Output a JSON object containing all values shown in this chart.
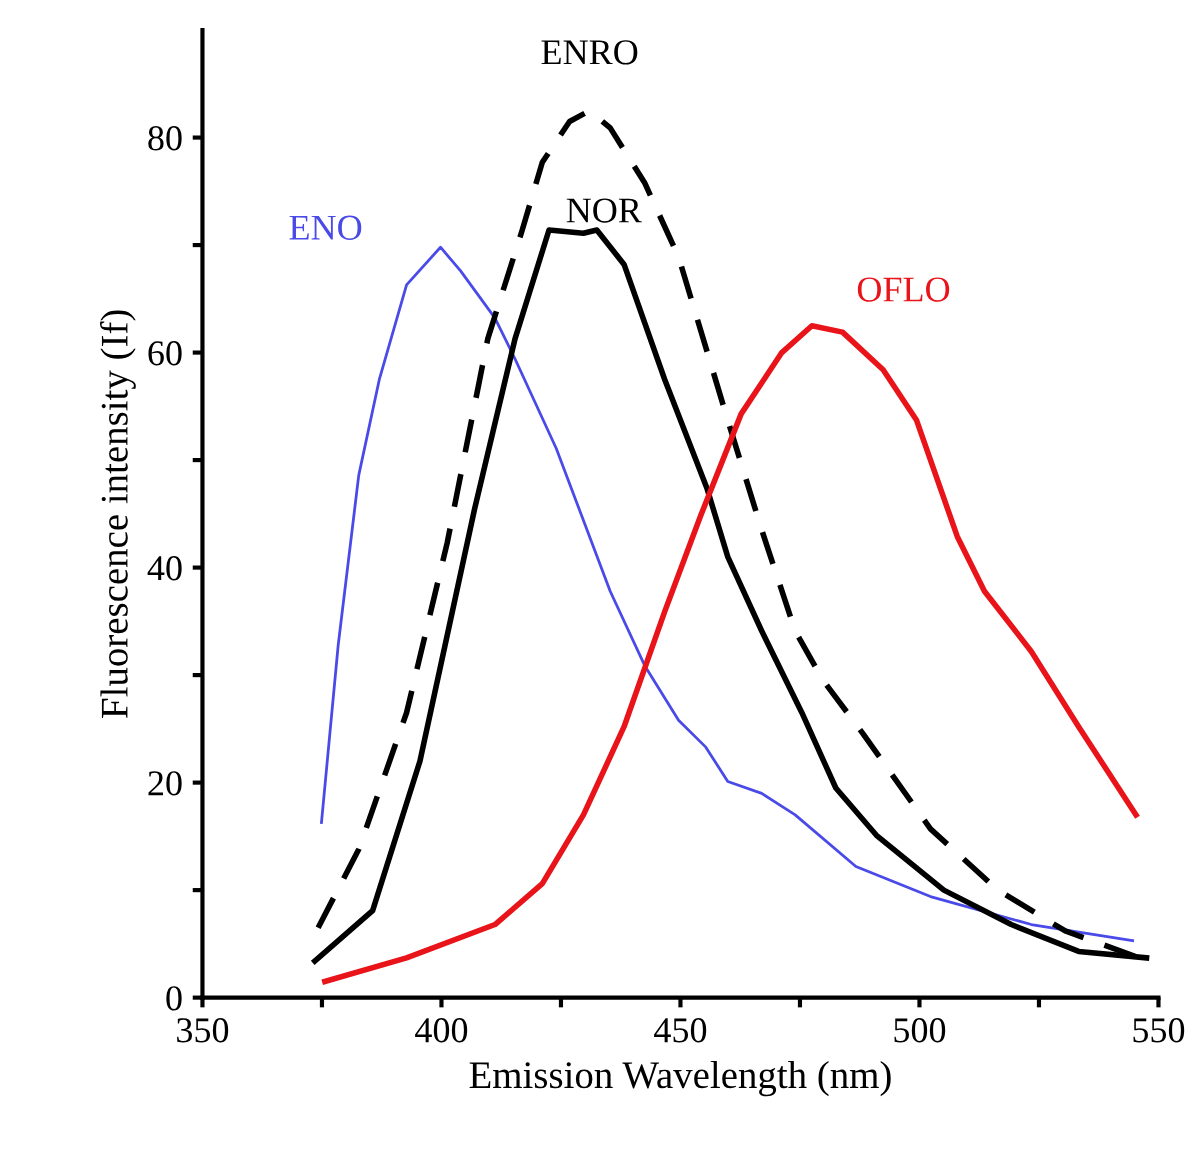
{
  "chart_data": {
    "type": "line",
    "xlabel": "Emission Wavelength (nm)",
    "ylabel": "Fluorescence intensity (If)",
    "xlim": [
      350,
      550
    ],
    "ylim": [
      0,
      90
    ],
    "xticks": [
      350,
      {
        "value": 375,
        "label": null
      },
      400,
      {
        "value": 425,
        "label": null
      },
      450,
      {
        "value": 475,
        "label": null
      },
      500,
      {
        "value": 525,
        "label": null
      },
      550
    ],
    "yticks": [
      0,
      {
        "value": 10,
        "label": null
      },
      20,
      {
        "value": 30,
        "label": null
      },
      40,
      {
        "value": 50,
        "label": null
      },
      60,
      {
        "value": 70,
        "label": null
      },
      80
    ],
    "grid": false,
    "legend": false,
    "marker": "none",
    "series": [
      {
        "name": "ENO",
        "color": "#4a4ae8",
        "line_style": "solid",
        "x": [
          374.9,
          378.4,
          382.7,
          387,
          392.7,
          399.8,
          404,
          411.2,
          415.4,
          424,
          435.3,
          442.5,
          449.6,
          455.3,
          459.9,
          467,
          474,
          486.7,
          502.3,
          523.4,
          544.6
        ],
        "values": [
          16.3,
          32.8,
          48.6,
          57.5,
          66.3,
          69.8,
          67.6,
          63.2,
          59.4,
          51.1,
          37.8,
          30.9,
          25.8,
          23.3,
          20.1,
          19.0,
          17.0,
          12.2,
          9.4,
          6.8,
          5.3
        ]
      },
      {
        "name": "ENRO",
        "color": "#000000",
        "line_style": "dashed",
        "x": [
          374.2,
          382.7,
          392.7,
          401.2,
          409.7,
          416.9,
          421.1,
          426.8,
          431,
          435.3,
          442.5,
          449.6,
          459.9,
          467,
          474,
          479.7,
          488.1,
          502.3,
          516.4,
          530.5,
          546
        ],
        "values": [
          6.5,
          13.8,
          26.5,
          42.3,
          61.3,
          71.4,
          77.7,
          81.5,
          82.5,
          80.9,
          75.8,
          68.9,
          53.7,
          43.5,
          34.1,
          29.6,
          24.6,
          15.7,
          10.0,
          6.2,
          3.7
        ]
      },
      {
        "name": "NOR",
        "color": "#000000",
        "line_style": "solid",
        "x": [
          373.5,
          385.6,
          395.5,
          406.9,
          415.4,
          422.5,
          429.7,
          432.5,
          438.2,
          446.7,
          455.6,
          459.9,
          467,
          475.4,
          482.5,
          491,
          505.1,
          519.2,
          533.3,
          547.5
        ],
        "values": [
          3.4,
          8.1,
          22,
          45.4,
          61.3,
          71.4,
          71.1,
          71.4,
          68.2,
          57.5,
          47.3,
          41.0,
          34.1,
          26.5,
          19.5,
          15.1,
          10.0,
          6.8,
          4.3,
          3.7
        ]
      },
      {
        "name": "OFLO",
        "color": "#e8141a",
        "line_style": "solid",
        "x": [
          375.6,
          392.7,
          411.2,
          421.1,
          429.7,
          438.2,
          446.7,
          454.2,
          462.7,
          471.2,
          477.5,
          483.9,
          492.4,
          499.4,
          507.9,
          513.6,
          523.4,
          533.3,
          545.3
        ],
        "values": [
          1.5,
          3.7,
          6.8,
          10.6,
          17.0,
          25.2,
          35.9,
          44.8,
          54.3,
          60.0,
          62.5,
          61.9,
          58.4,
          53.7,
          42.9,
          37.8,
          32.2,
          25.2,
          17.0
        ]
      }
    ]
  }
}
